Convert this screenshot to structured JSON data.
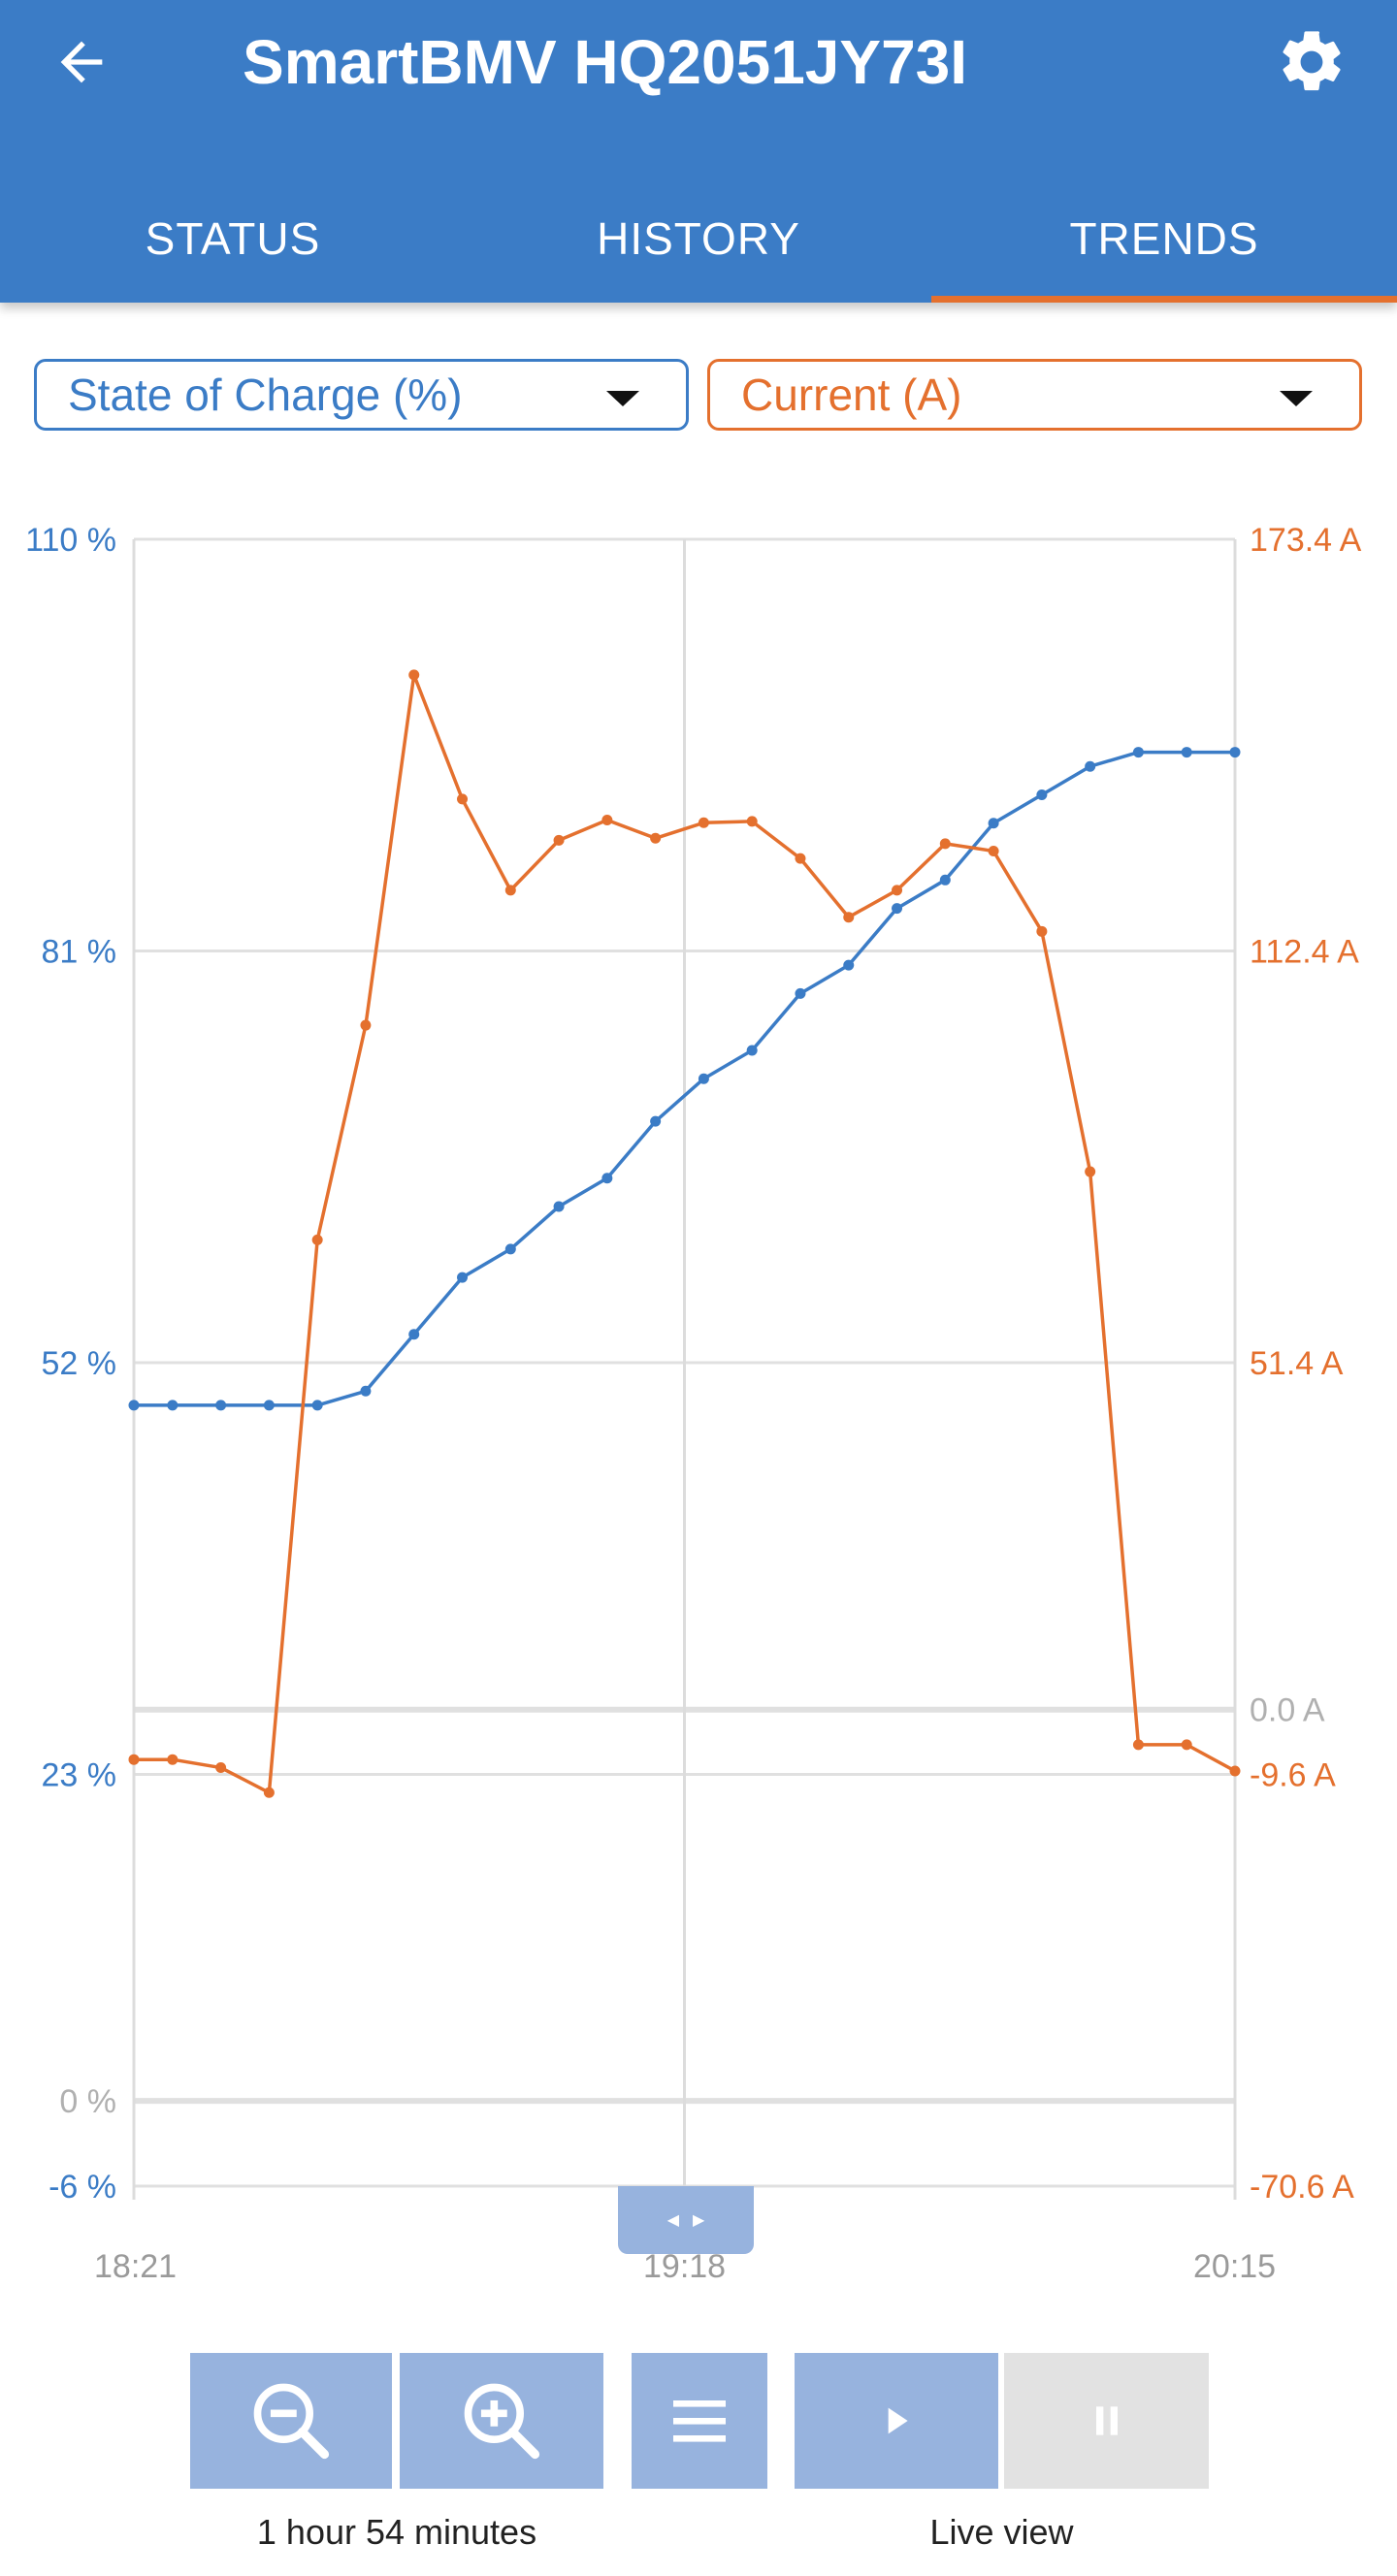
{
  "app_title": "SmartBMV HQ2051JY73I",
  "tabs": [
    {
      "label": "STATUS",
      "active": false
    },
    {
      "label": "HISTORY",
      "active": false
    },
    {
      "label": "TRENDS",
      "active": true
    }
  ],
  "selectors": {
    "left": {
      "value": "State of Charge (%)"
    },
    "right": {
      "value": "Current (A)"
    }
  },
  "colors": {
    "primary": "#3b7cc6",
    "accent": "#e4702e",
    "tick_gray": "#b0b0b0"
  },
  "chart_data": {
    "type": "line",
    "x_ticks": [
      "18:21",
      "19:18",
      "20:15"
    ],
    "y_left": {
      "ticks": [
        "110 %",
        "81 %",
        "52 %",
        "23 %",
        "0 %",
        "-6 %"
      ],
      "range": [
        -6,
        110
      ]
    },
    "y_right": {
      "ticks": [
        "173.4 A",
        "112.4 A",
        "51.4 A",
        "0.0 A",
        "-9.6 A",
        "-70.6 A"
      ],
      "range": [
        -70.6,
        173.4
      ]
    },
    "x_range_minutes": [
      0,
      114
    ],
    "series": [
      {
        "axis": "left",
        "color": "#3b7cc6",
        "x": [
          0,
          4,
          9,
          14,
          19,
          24,
          29,
          34,
          39,
          44,
          49,
          54,
          59,
          64,
          69,
          74,
          79,
          84,
          89,
          94,
          99,
          104,
          109,
          114
        ],
        "y": [
          49,
          49,
          49,
          49,
          49,
          50,
          54,
          58,
          60,
          63,
          65,
          69,
          72,
          74,
          78,
          80,
          84,
          86,
          90,
          92,
          94,
          95,
          95,
          95
        ]
      },
      {
        "axis": "right",
        "color": "#e4702e",
        "x": [
          0,
          4,
          9,
          14,
          19,
          24,
          29,
          34,
          39,
          44,
          49,
          54,
          59,
          64,
          69,
          74,
          79,
          84,
          89,
          94,
          99,
          104,
          109,
          114
        ],
        "y": [
          -7.4,
          -7.4,
          -8.6,
          -12.3,
          69.6,
          101.4,
          153.3,
          134.9,
          121.4,
          128.8,
          131.8,
          129.1,
          131.4,
          131.6,
          126.1,
          117.4,
          121.4,
          128.3,
          127.2,
          115.3,
          79.7,
          -5.2,
          -5.2,
          -9.1
        ]
      }
    ],
    "grid": true
  },
  "zoom_out_icon": "zoom-out-icon",
  "zoom_in_icon": "zoom-in-icon",
  "menu_icon": "menu-icon",
  "play_icon": "play-icon",
  "pause_icon": "pause-icon",
  "footer": {
    "time_span": "1 hour 54 minutes",
    "live_view": "Live view"
  }
}
